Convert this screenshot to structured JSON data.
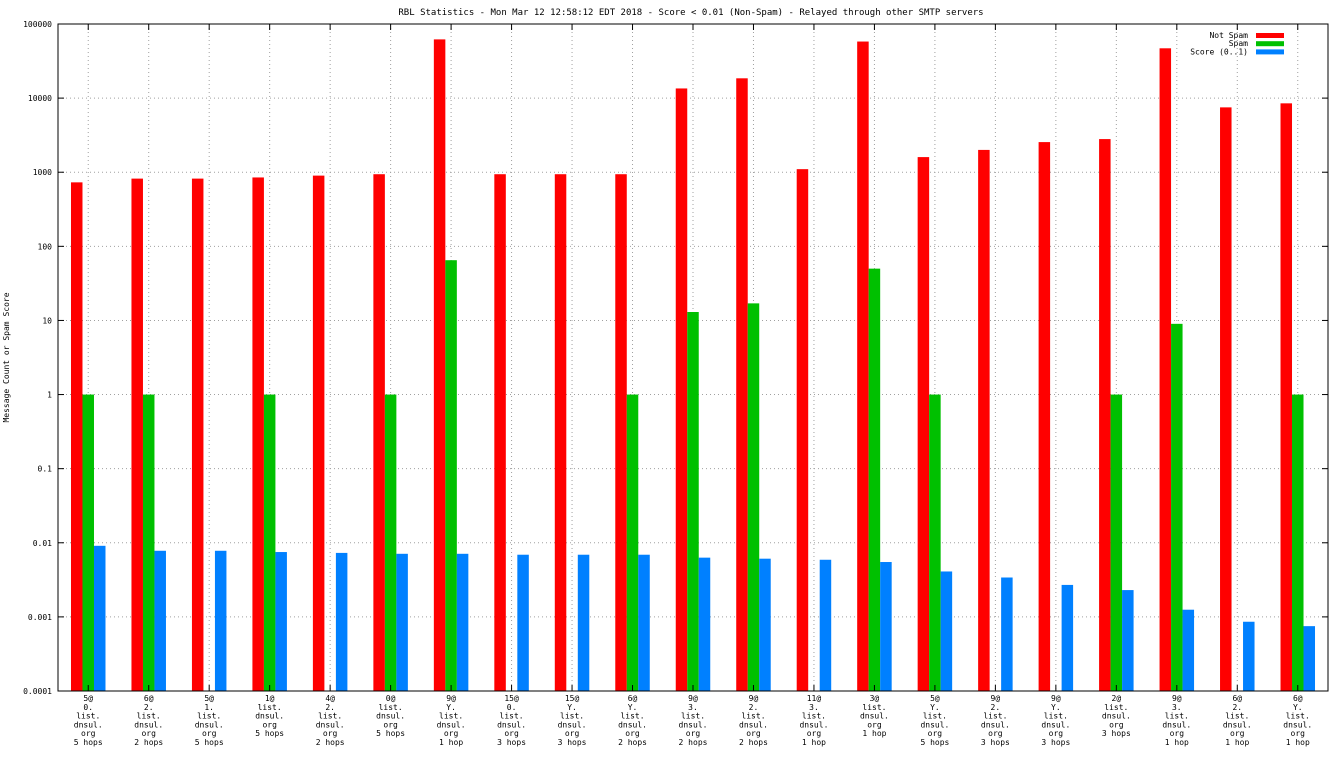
{
  "chart_data": {
    "type": "bar",
    "title": "RBL Statistics - Mon Mar 12 12:58:12 EDT 2018 - Score < 0.01 (Non-Spam) - Relayed through other SMTP servers",
    "xlabel": "",
    "ylabel": "Message Count or Spam Score",
    "yscale": "log",
    "ylim": [
      0.0001,
      100000
    ],
    "yticks": [
      "0.0001",
      "0.001",
      "0.01",
      "0.1",
      "1",
      "10",
      "100",
      "1000",
      "10000",
      "100000"
    ],
    "grid": true,
    "legend_position": "top-right",
    "categories": [
      [
        "5@",
        "0.",
        "list.",
        "dnsul.",
        "org",
        "5 hops"
      ],
      [
        "6@",
        "2.",
        "list.",
        "dnsul.",
        "org",
        "2 hops"
      ],
      [
        "5@",
        "1.",
        "list.",
        "dnsul.",
        "org",
        "5 hops"
      ],
      [
        "1@",
        "list.",
        "dnsul.",
        "org",
        "5 hops"
      ],
      [
        "4@",
        "2.",
        "list.",
        "dnsul.",
        "org",
        "2 hops"
      ],
      [
        "0@",
        "list.",
        "dnsul.",
        "org",
        "5 hops"
      ],
      [
        "9@",
        "Y.",
        "list.",
        "dnsul.",
        "org",
        "1 hop"
      ],
      [
        "15@",
        "0.",
        "list.",
        "dnsul.",
        "org",
        "3 hops"
      ],
      [
        "15@",
        "Y.",
        "list.",
        "dnsul.",
        "org",
        "3 hops"
      ],
      [
        "6@",
        "Y.",
        "list.",
        "dnsul.",
        "org",
        "2 hops"
      ],
      [
        "9@",
        "3.",
        "list.",
        "dnsul.",
        "org",
        "2 hops"
      ],
      [
        "9@",
        "2.",
        "list.",
        "dnsul.",
        "org",
        "2 hops"
      ],
      [
        "11@",
        "3.",
        "list.",
        "dnsul.",
        "org",
        "1 hop"
      ],
      [
        "3@",
        "list.",
        "dnsul.",
        "org",
        "1 hop"
      ],
      [
        "5@",
        "Y.",
        "list.",
        "dnsul.",
        "org",
        "5 hops"
      ],
      [
        "9@",
        "2.",
        "list.",
        "dnsul.",
        "org",
        "3 hops"
      ],
      [
        "9@",
        "Y.",
        "list.",
        "dnsul.",
        "org",
        "3 hops"
      ],
      [
        "2@",
        "list.",
        "dnsul.",
        "org",
        "3 hops"
      ],
      [
        "9@",
        "3.",
        "list.",
        "dnsul.",
        "org",
        "1 hop"
      ],
      [
        "6@",
        "2.",
        "list.",
        "dnsul.",
        "org",
        "1 hop"
      ],
      [
        "6@",
        "Y.",
        "list.",
        "dnsul.",
        "org",
        "1 hop"
      ]
    ],
    "series": [
      {
        "name": "Not Spam",
        "color": "#ff0000",
        "values": [
          730,
          820,
          820,
          850,
          900,
          940,
          62000,
          940,
          940,
          940,
          13500,
          18500,
          1100,
          58000,
          1600,
          2000,
          2550,
          2800,
          47000,
          7500,
          8500
        ]
      },
      {
        "name": "Spam",
        "color": "#00c000",
        "values": [
          1,
          1,
          null,
          1,
          null,
          1,
          65,
          null,
          null,
          1,
          13,
          17,
          null,
          50,
          1,
          null,
          null,
          1,
          9,
          null,
          1
        ]
      },
      {
        "name": "Score (0..1)",
        "color": "#0080ff",
        "values": [
          0.0091,
          0.0078,
          0.0078,
          0.0075,
          0.0073,
          0.0071,
          0.0071,
          0.0069,
          0.0069,
          0.0069,
          0.0063,
          0.0061,
          0.0059,
          0.0055,
          0.0041,
          0.0034,
          0.0027,
          0.0023,
          0.00125,
          0.00086,
          0.00075
        ]
      }
    ]
  }
}
